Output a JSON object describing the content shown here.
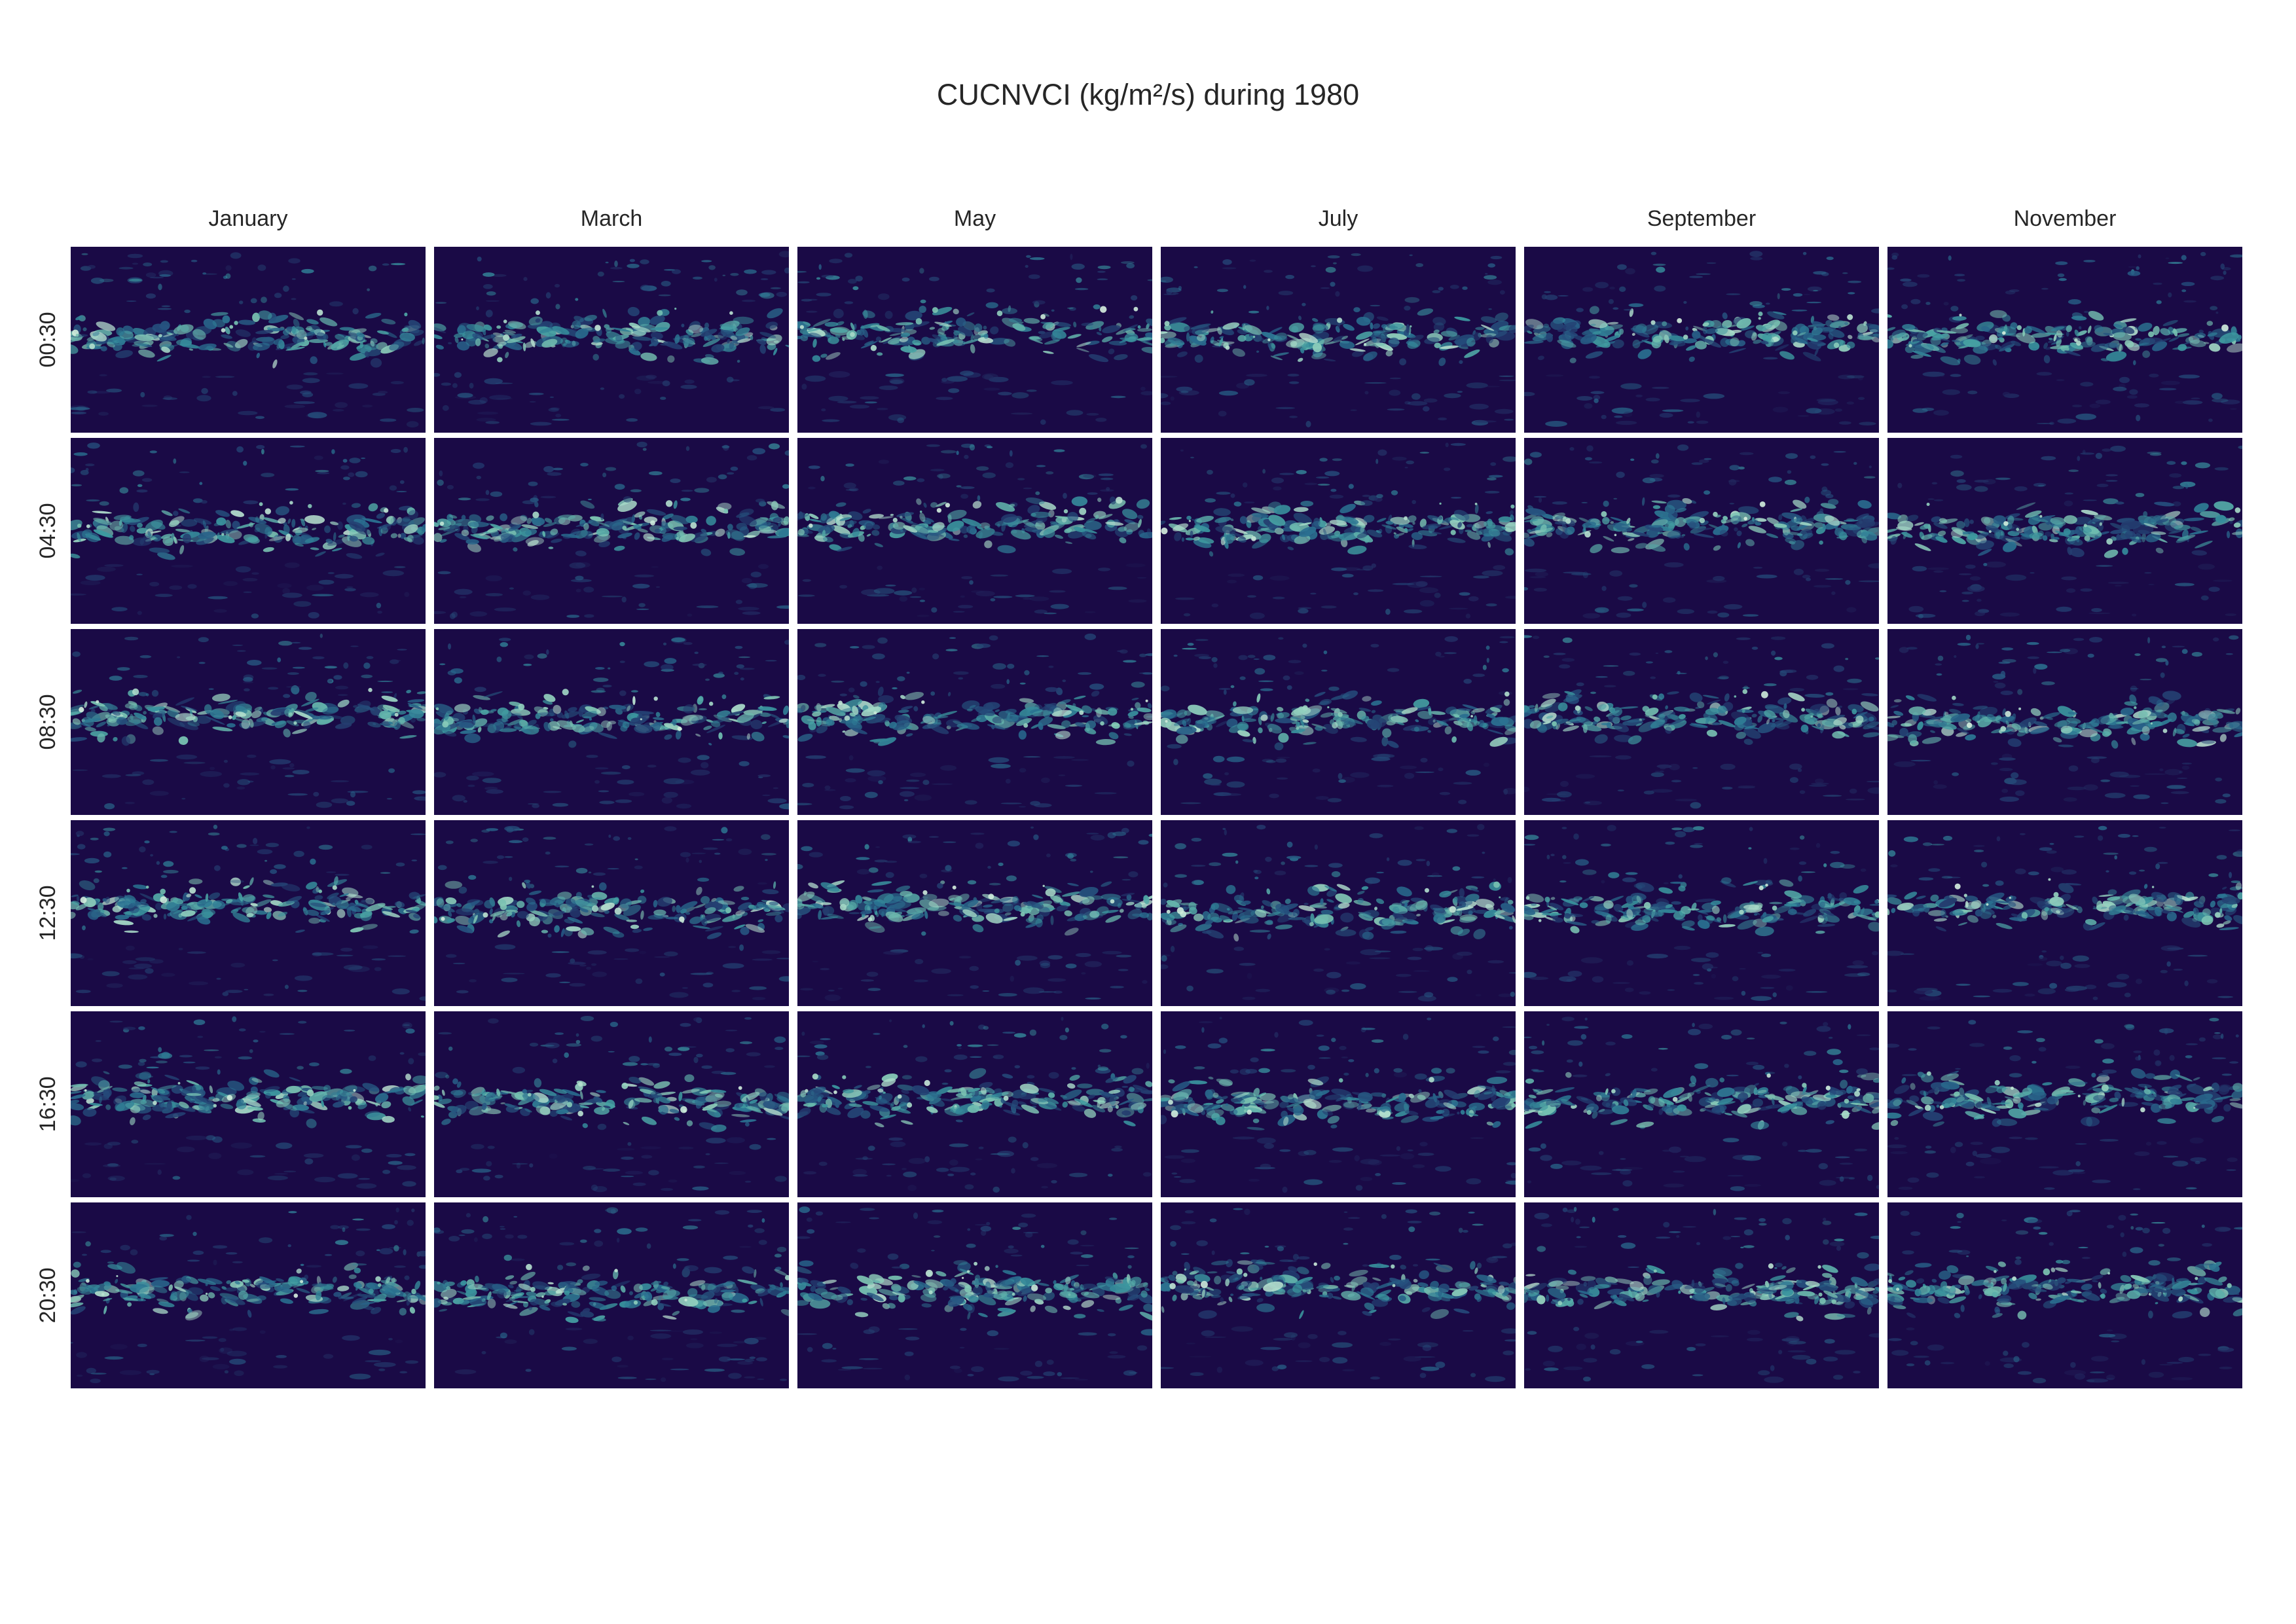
{
  "title": "CUCNVCI (kg/m²/s) during 1980",
  "chart_data": {
    "type": "heatmap",
    "title": "CUCNVCI (kg/m²/s) during 1980",
    "variable": "CUCNVCI",
    "units": "kg/m²/s",
    "year": "1980",
    "columns": [
      "January",
      "March",
      "May",
      "July",
      "September",
      "November"
    ],
    "rows": [
      "00:30",
      "04:30",
      "08:30",
      "12:30",
      "16:30",
      "20:30"
    ],
    "colormap": [
      "#1a0a46",
      "#22285f",
      "#254a7a",
      "#2a7191",
      "#3d9aa0",
      "#7fc7b4",
      "#d8f0e0"
    ],
    "background_color": "#1a0a46",
    "pattern": "concentrated band along the equator with scattered mid-latitude and southern features",
    "xlabel": "",
    "ylabel": ""
  }
}
